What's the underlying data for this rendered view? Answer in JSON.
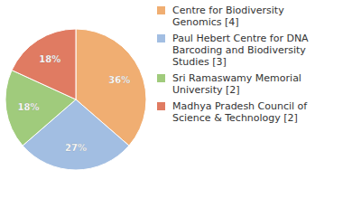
{
  "chart_data": {
    "type": "pie",
    "categories": [
      "Centre for Biodiversity Genomics [4]",
      "Paul Hebert Centre for DNA Barcoding and Biodiversity Studies [3]",
      "Sri Ramaswamy Memorial University [2]",
      "Madhya Pradesh Council of Science & Technology [2]"
    ],
    "values": [
      36,
      27,
      18,
      18
    ],
    "value_labels": [
      "36%",
      "27%",
      "18%",
      "18%"
    ],
    "colors": [
      "#f0ae72",
      "#a2bee2",
      "#a0cb7c",
      "#e07b62"
    ],
    "data_labels": true
  }
}
